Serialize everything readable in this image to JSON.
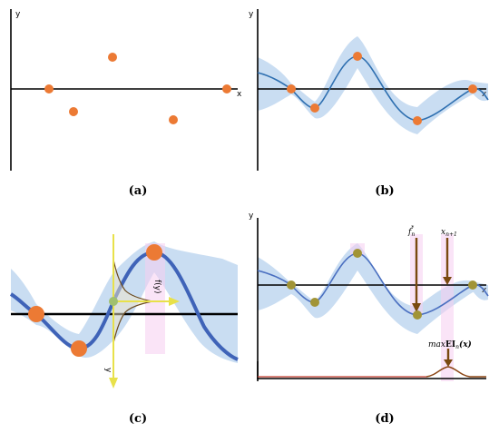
{
  "panels": {
    "a": {
      "label": "(a)",
      "y_axis": "y",
      "x_axis": "x"
    },
    "b": {
      "label": "(b)",
      "y_axis": "y",
      "x_axis": "x"
    },
    "c": {
      "label": "(c)",
      "fy_label": "f(y)",
      "y_label": "y"
    },
    "d": {
      "label": "(d)",
      "y_axis": "y",
      "x_axis": "x",
      "f_star": "f",
      "f_star_sub": "n",
      "f_star_sup": "*",
      "x_next": "x",
      "x_next_sub": "n+1",
      "max_ei_prefix": "max",
      "max_ei_main": "EI",
      "max_ei_sub": "n",
      "max_ei_arg": "(x)"
    }
  },
  "colors": {
    "point": "#ec7a34",
    "curve": "#2e6fb0",
    "band": "#c9ddf2",
    "axis": "#000000",
    "arrow": "#7a4a10",
    "yellow": "#e8e14a",
    "pink": "#f6cdf0"
  }
}
